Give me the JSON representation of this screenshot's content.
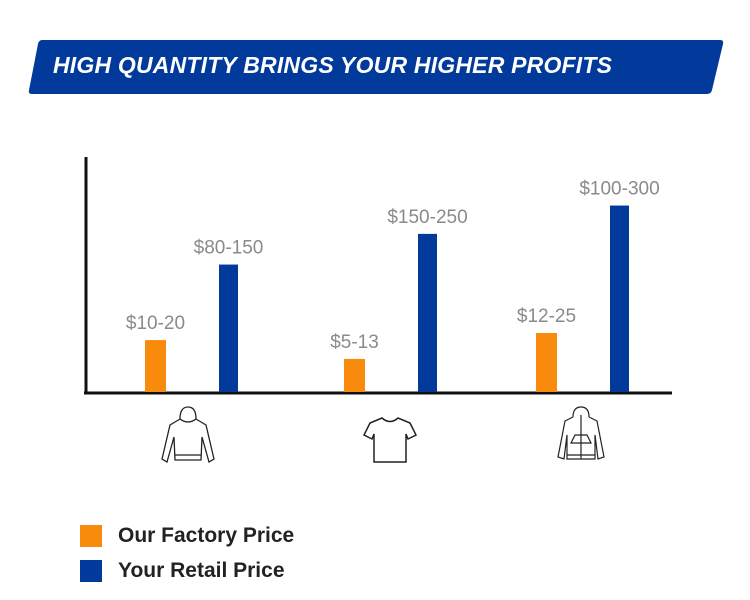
{
  "header": {
    "title": "HIGH QUANTITY BRINGS YOUR HIGHER PROFITS",
    "banner_color": "#023a9c"
  },
  "chart_data": {
    "type": "bar",
    "title": "HIGH QUANTITY BRINGS YOUR HIGHER PROFITS",
    "categories": [
      "Hoodie",
      "T-shirt",
      "Zip hoodie"
    ],
    "category_icons": [
      "hoodie-icon",
      "tshirt-icon",
      "zip-hoodie-icon"
    ],
    "series": [
      {
        "name": "Our Factory Price",
        "color": "#f88b0c",
        "labels": [
          "$10-20",
          "$5-13",
          "$12-25"
        ],
        "ranges": [
          [
            10,
            20
          ],
          [
            5,
            13
          ],
          [
            12,
            25
          ]
        ],
        "relative_height": [
          22,
          14,
          25
        ]
      },
      {
        "name": "Your Retail Price",
        "color": "#023a9c",
        "labels": [
          "$80-150",
          "$150-250",
          "$100-300"
        ],
        "ranges": [
          [
            80,
            150
          ],
          [
            150,
            250
          ],
          [
            100,
            300
          ]
        ],
        "relative_height": [
          54,
          67,
          79
        ]
      }
    ],
    "xlabel": "",
    "ylabel": "",
    "ylim": [
      0,
      100
    ],
    "grid": false,
    "legend": "bottom-left"
  }
}
